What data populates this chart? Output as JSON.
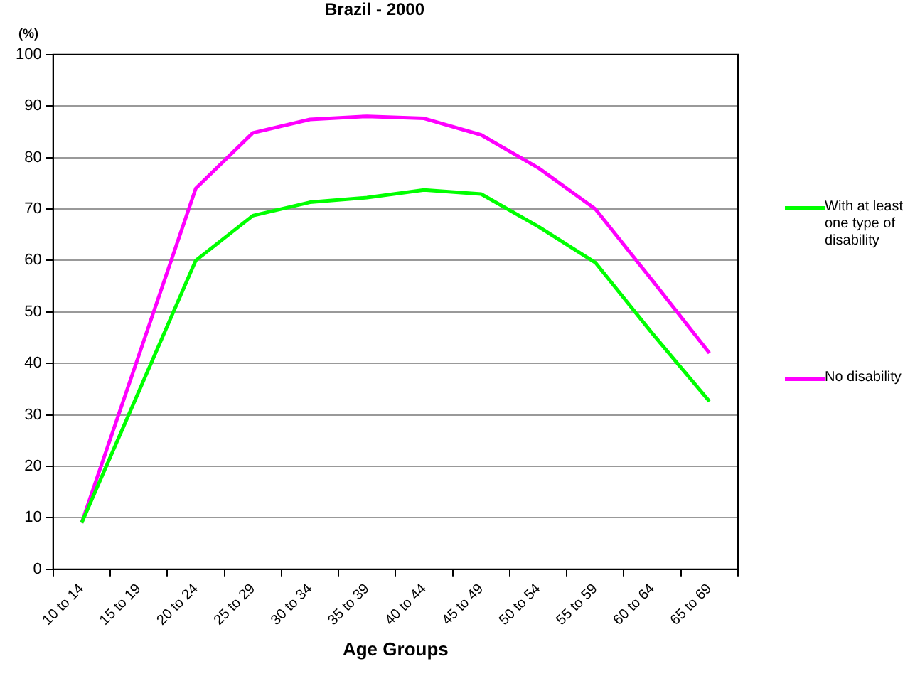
{
  "chart_data": {
    "type": "line",
    "title": "Brazil - 2000",
    "ylabel": "(%)",
    "xlabel": "Age Groups",
    "categories": [
      "10 to 14",
      "15 to 19",
      "20 to 24",
      "25 to 29",
      "30 to 34",
      "35 to 39",
      "40 to 44",
      "45 to 49",
      "50 to 54",
      "55 to 59",
      "60 to 64",
      "65 to 69"
    ],
    "series": [
      {
        "name": "With at least one type of disability",
        "color": "#00ff00",
        "values": [
          9,
          34.5,
          60,
          68.7,
          71.3,
          72.2,
          73.7,
          72.9,
          66.6,
          59.6,
          45.8,
          32.6
        ]
      },
      {
        "name": "No disability",
        "color": "#ff00ff",
        "values": [
          9,
          41.5,
          74,
          84.8,
          87.4,
          88,
          87.6,
          84.4,
          78,
          70,
          56.1,
          42
        ]
      }
    ],
    "ylim": [
      0,
      100
    ],
    "yticks": [
      0,
      10,
      20,
      30,
      40,
      50,
      60,
      70,
      80,
      90,
      100
    ],
    "grid": "y",
    "legend": "right",
    "marker": "none",
    "line_style": "solid"
  }
}
